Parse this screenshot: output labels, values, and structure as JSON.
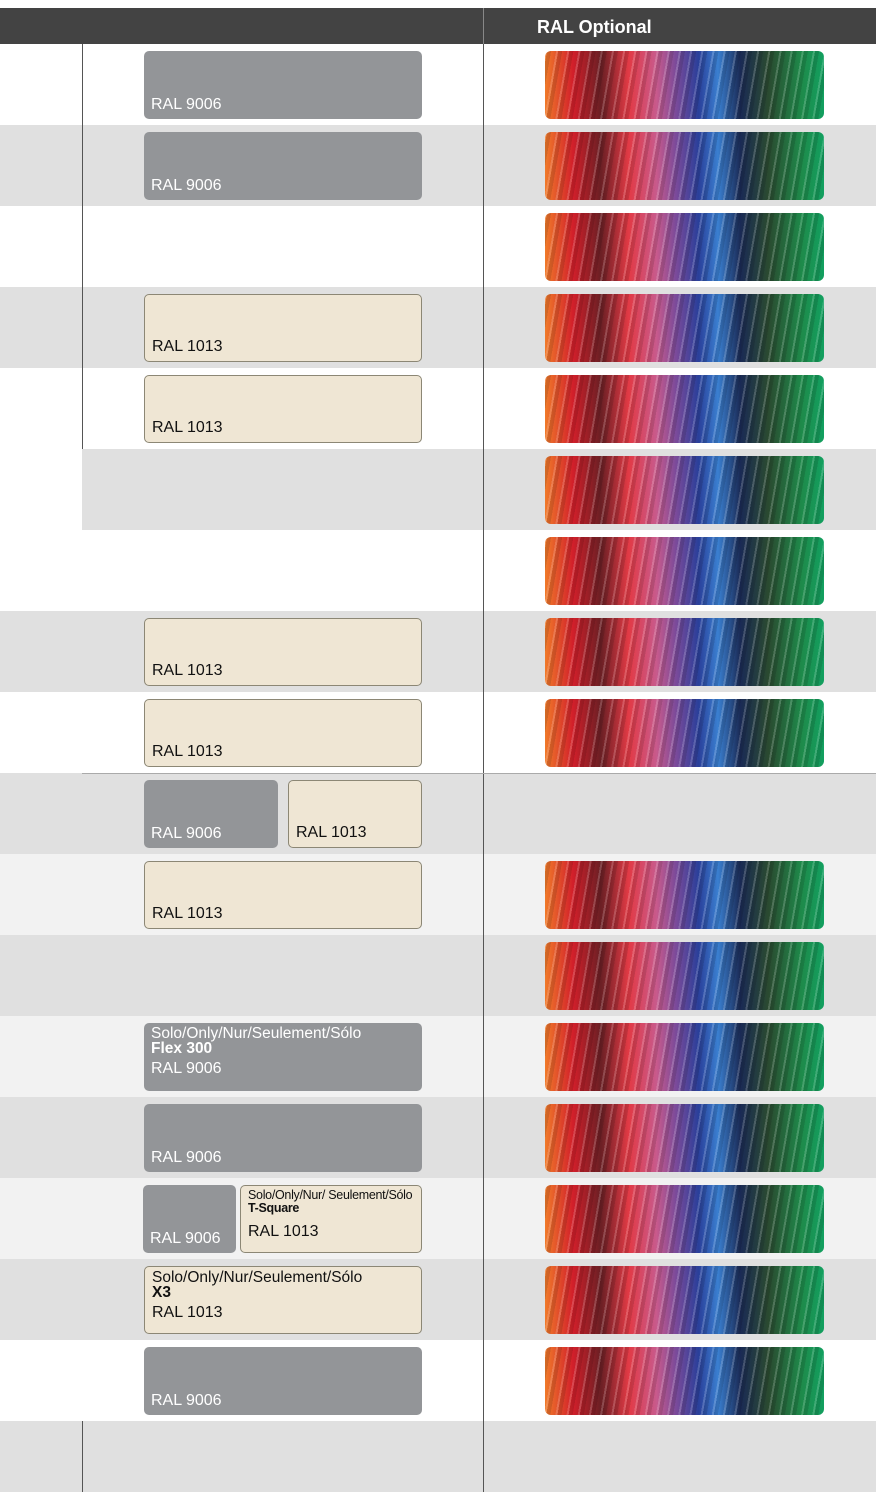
{
  "header": {
    "title": "RAL Optional"
  },
  "rows": [
    {
      "background": "#ffffff",
      "optional": true,
      "swatches": [
        {
          "color": "#939598",
          "label": "RAL 9006"
        }
      ]
    },
    {
      "background": "#e0e0e0",
      "optional": true,
      "swatches": [
        {
          "color": "#939598",
          "label": "RAL 9006"
        }
      ]
    },
    {
      "background": "#ffffff",
      "optional": true,
      "swatches": []
    },
    {
      "background": "#e0e0e0",
      "optional": true,
      "swatches": [
        {
          "color": "#efe6d4",
          "label": "RAL 1013"
        }
      ]
    },
    {
      "background": "#ffffff",
      "optional": true,
      "swatches": [
        {
          "color": "#efe6d4",
          "label": "RAL 1013"
        }
      ]
    },
    {
      "background": "#e0e0e0",
      "optional": true,
      "swatches": []
    },
    {
      "background": "#ffffff",
      "optional": true,
      "swatches": []
    },
    {
      "background": "#e0e0e0",
      "optional": true,
      "swatches": [
        {
          "color": "#efe6d4",
          "label": "RAL 1013"
        }
      ]
    },
    {
      "background": "#ffffff",
      "optional": true,
      "swatches": [
        {
          "color": "#efe6d4",
          "label": "RAL 1013"
        }
      ]
    },
    {
      "background": "#e0e0e0",
      "optional": false,
      "swatches": [
        {
          "color": "#939598",
          "label": "RAL 9006"
        },
        {
          "color": "#efe6d4",
          "label": "RAL 1013"
        }
      ]
    },
    {
      "background": "#f2f2f2",
      "optional": true,
      "swatches": [
        {
          "color": "#efe6d4",
          "label": "RAL 1013"
        }
      ]
    },
    {
      "background": "#e0e0e0",
      "optional": true,
      "swatches": []
    },
    {
      "background": "#f2f2f2",
      "optional": true,
      "swatches": [
        {
          "color": "#939598",
          "note": "Solo/Only/Nur/Seulement/Sólo",
          "model": "Flex 300",
          "label": "RAL 9006"
        }
      ]
    },
    {
      "background": "#e0e0e0",
      "optional": true,
      "swatches": [
        {
          "color": "#939598",
          "label": "RAL 9006"
        }
      ]
    },
    {
      "background": "#f2f2f2",
      "optional": true,
      "swatches": [
        {
          "color": "#939598",
          "label": "RAL 9006"
        },
        {
          "color": "#efe6d4",
          "note": "Solo/Only/Nur/ Seulement/Sólo",
          "model": "T-Square",
          "label": "RAL 1013"
        }
      ]
    },
    {
      "background": "#e0e0e0",
      "optional": true,
      "swatches": [
        {
          "color": "#efe6d4",
          "note": "Solo/Only/Nur/Seulement/Sólo",
          "model": "X3",
          "label": "RAL 1013"
        }
      ]
    },
    {
      "background": "#ffffff",
      "optional": true,
      "swatches": [
        {
          "color": "#939598",
          "label": "RAL 9006"
        }
      ]
    },
    {
      "background": "#e0e0e0",
      "optional": false,
      "swatches": []
    }
  ]
}
